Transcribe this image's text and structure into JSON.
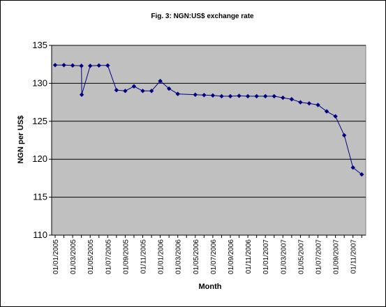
{
  "chart_data": {
    "type": "line",
    "title": "Fig. 3: NGN:US$ exchange rate",
    "xlabel": "Month",
    "ylabel": "NGN per US$",
    "ylim": [
      110,
      135
    ],
    "yticks": [
      110,
      115,
      120,
      125,
      130,
      135
    ],
    "grid": true,
    "legend": "none",
    "colors": {
      "plot_bg": "#c0c0c0",
      "line": "#000080",
      "marker": "#000080",
      "grid": "#000000"
    },
    "x_tick_labels": [
      "01/01/2005",
      "01/03/2005",
      "01/05/2005",
      "01/07/2005",
      "01/09/2005",
      "01/11/2005",
      "01/01/2006",
      "01/03/2006",
      "01/05/2006",
      "01/07/2006",
      "01/09/2006",
      "01/11/2006",
      "01/01/2007",
      "01/03/2007",
      "01/05/2007",
      "01/07/2007",
      "01/09/2007",
      "01/11/2007"
    ],
    "series": [
      {
        "x": [
          "2005-01-01",
          "2005-02-01",
          "2005-03-01",
          "2005-04-01",
          "2005-04-02",
          "2005-05-01",
          "2005-06-01",
          "2005-07-01",
          "2005-08-01",
          "2005-09-01",
          "2005-10-01",
          "2005-11-01",
          "2005-12-01",
          "2006-01-01",
          "2006-02-01",
          "2006-03-01",
          "2006-05-01",
          "2006-06-01",
          "2006-07-01",
          "2006-08-01",
          "2006-09-01",
          "2006-10-01",
          "2006-11-01",
          "2006-12-01",
          "2007-01-01",
          "2007-02-01",
          "2007-03-01",
          "2007-04-01",
          "2007-05-01",
          "2007-06-01",
          "2007-07-01",
          "2007-08-01",
          "2007-09-01",
          "2007-10-01",
          "2007-11-01",
          "2007-12-01"
        ],
        "values": [
          132.4,
          132.4,
          132.35,
          132.3,
          128.5,
          132.3,
          132.35,
          132.35,
          129.1,
          129.0,
          129.6,
          129.0,
          129.0,
          130.3,
          129.3,
          128.6,
          128.5,
          128.45,
          128.4,
          128.3,
          128.3,
          128.35,
          128.3,
          128.3,
          128.3,
          128.3,
          128.1,
          127.9,
          127.5,
          127.35,
          127.15,
          126.3,
          125.65,
          123.15,
          118.9,
          118.0
        ]
      }
    ]
  }
}
